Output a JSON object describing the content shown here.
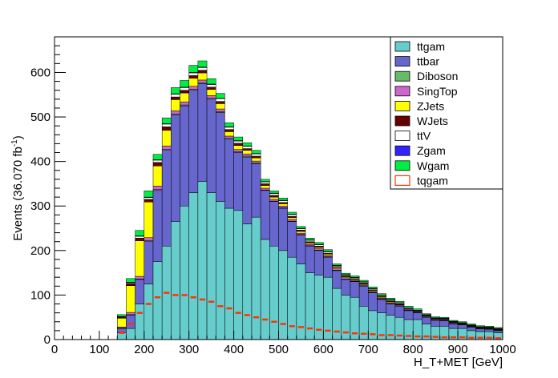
{
  "chart_data": {
    "type": "bar",
    "stacked": true,
    "bin_width": 20,
    "x": [
      110,
      130,
      150,
      170,
      190,
      210,
      230,
      250,
      270,
      290,
      310,
      330,
      350,
      370,
      390,
      410,
      430,
      450,
      470,
      490,
      510,
      530,
      550,
      570,
      590,
      610,
      630,
      650,
      670,
      690,
      710,
      730,
      750,
      770,
      790,
      810,
      830,
      850,
      870,
      890,
      910,
      930,
      950,
      970,
      990
    ],
    "xlabel": "H_T+MET [GeV]",
    "ylabel_base": "Events (36.070 fb",
    "ylabel_sup": "-1",
    "ylabel_end": ")",
    "xlim": [
      0,
      1000
    ],
    "ylim": [
      0,
      680
    ],
    "xticks": [
      0,
      100,
      200,
      300,
      400,
      500,
      600,
      700,
      800,
      900,
      1000
    ],
    "yticks": [
      0,
      100,
      200,
      300,
      400,
      500,
      600
    ],
    "series": [
      {
        "name": "ttgam",
        "color": "#66cccc",
        "values": [
          0,
          0,
          15,
          25,
          80,
          125,
          175,
          210,
          265,
          300,
          330,
          355,
          330,
          310,
          295,
          290,
          260,
          275,
          225,
          210,
          200,
          185,
          170,
          150,
          145,
          140,
          115,
          100,
          95,
          75,
          65,
          60,
          55,
          50,
          45,
          45,
          35,
          30,
          30,
          25,
          25,
          20,
          18,
          18,
          15
        ]
      },
      {
        "name": "ttbar",
        "color": "#6666cc",
        "values": [
          0,
          0,
          10,
          30,
          55,
          95,
          160,
          215,
          240,
          225,
          230,
          220,
          210,
          200,
          155,
          130,
          150,
          120,
          110,
          100,
          95,
          80,
          65,
          60,
          55,
          45,
          40,
          35,
          35,
          45,
          40,
          30,
          25,
          25,
          20,
          15,
          15,
          13,
          12,
          10,
          8,
          8,
          6,
          5,
          5
        ]
      },
      {
        "name": "Diboson",
        "color": "#66bb66",
        "values": [
          0,
          0,
          1,
          1,
          1,
          2,
          2,
          2,
          2,
          2,
          2,
          2,
          2,
          2,
          2,
          2,
          2,
          2,
          1,
          1,
          1,
          1,
          1,
          1,
          1,
          1,
          1,
          1,
          1,
          1,
          1,
          1,
          1,
          1,
          1,
          1,
          1,
          1,
          1,
          1,
          1,
          1,
          1,
          1,
          1
        ]
      },
      {
        "name": "SingTop",
        "color": "#cc66cc",
        "values": [
          0,
          0,
          2,
          5,
          6,
          7,
          8,
          8,
          7,
          7,
          7,
          6,
          6,
          6,
          5,
          5,
          5,
          4,
          4,
          4,
          4,
          4,
          3,
          3,
          3,
          3,
          3,
          3,
          2,
          2,
          2,
          2,
          2,
          2,
          2,
          2,
          2,
          2,
          2,
          2,
          1,
          1,
          1,
          1,
          1
        ]
      },
      {
        "name": "ZJets",
        "color": "#ffff00",
        "values": [
          0,
          0,
          20,
          60,
          80,
          80,
          45,
          35,
          25,
          20,
          18,
          16,
          14,
          12,
          10,
          9,
          8,
          7,
          6,
          5,
          5,
          4,
          4,
          3,
          3,
          3,
          3,
          2,
          2,
          2,
          2,
          2,
          2,
          1,
          1,
          1,
          1,
          1,
          1,
          1,
          1,
          1,
          1,
          1,
          1
        ]
      },
      {
        "name": "WJets",
        "color": "#660000",
        "values": [
          0,
          0,
          2,
          5,
          6,
          6,
          8,
          8,
          6,
          6,
          6,
          6,
          5,
          5,
          5,
          5,
          4,
          4,
          4,
          4,
          3,
          3,
          3,
          3,
          3,
          2,
          2,
          2,
          2,
          2,
          2,
          2,
          2,
          2,
          1,
          1,
          1,
          1,
          1,
          1,
          1,
          1,
          1,
          1,
          1
        ]
      },
      {
        "name": "ttV",
        "color": "#ffffff",
        "values": [
          0,
          0,
          1,
          2,
          4,
          4,
          5,
          6,
          6,
          6,
          6,
          6,
          6,
          6,
          5,
          5,
          5,
          5,
          4,
          4,
          4,
          4,
          3,
          3,
          3,
          3,
          2,
          2,
          2,
          2,
          2,
          2,
          2,
          2,
          2,
          1,
          1,
          1,
          1,
          1,
          1,
          1,
          1,
          1,
          1
        ]
      },
      {
        "name": "Zgam",
        "color": "#3322ff",
        "values": [
          0,
          0,
          1,
          1,
          1,
          1,
          1,
          1,
          1,
          1,
          1,
          1,
          1,
          1,
          1,
          1,
          1,
          1,
          1,
          1,
          1,
          1,
          1,
          1,
          1,
          1,
          1,
          1,
          1,
          1,
          1,
          1,
          1,
          0,
          0,
          0,
          0,
          0,
          0,
          0,
          0,
          0,
          0,
          0,
          0
        ]
      },
      {
        "name": "Wgam",
        "color": "#00ee44",
        "values": [
          0,
          0,
          4,
          8,
          12,
          14,
          12,
          13,
          14,
          15,
          16,
          14,
          12,
          11,
          9,
          8,
          7,
          7,
          5,
          5,
          5,
          4,
          4,
          4,
          4,
          4,
          3,
          3,
          3,
          3,
          3,
          3,
          3,
          3,
          3,
          3,
          2,
          2,
          2,
          2,
          2,
          2,
          2,
          2,
          2
        ]
      }
    ],
    "signal": {
      "name": "tqgam",
      "color": "#ff3300",
      "values": [
        0,
        0,
        15,
        35,
        60,
        80,
        95,
        105,
        100,
        100,
        95,
        90,
        85,
        75,
        70,
        60,
        55,
        50,
        45,
        40,
        35,
        30,
        28,
        25,
        22,
        20,
        18,
        16,
        14,
        13,
        12,
        10,
        10,
        9,
        8,
        7,
        7,
        6,
        5,
        5,
        5,
        4,
        4,
        4,
        3
      ]
    },
    "legend": {
      "placement": "top-right",
      "entries": [
        "ttgam",
        "ttbar",
        "Diboson",
        "SingTop",
        "ZJets",
        "WJets",
        "ttV",
        "Zgam",
        "Wgam",
        "tqgam"
      ]
    }
  }
}
